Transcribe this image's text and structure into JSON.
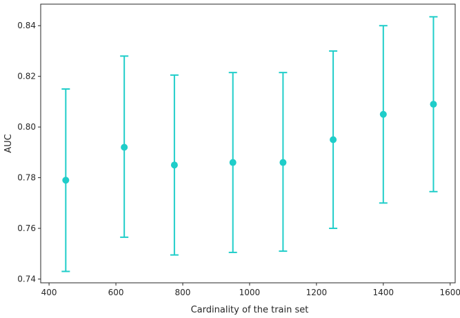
{
  "chart_data": {
    "type": "scatter",
    "title": "",
    "xlabel": "Cardinality of the train set",
    "ylabel": "AUC",
    "xlim": [
      375,
      1615
    ],
    "ylim": [
      0.7385,
      0.8485
    ],
    "x_ticks": [
      400,
      600,
      800,
      1000,
      1200,
      1400,
      1600
    ],
    "y_ticks": [
      0.74,
      0.76,
      0.78,
      0.8,
      0.82,
      0.84
    ],
    "x_tick_labels": [
      "400",
      "600",
      "800",
      "1000",
      "1200",
      "1400",
      "1600"
    ],
    "y_tick_labels": [
      "0.74",
      "0.76",
      "0.78",
      "0.80",
      "0.82",
      "0.84"
    ],
    "grid": false,
    "color": "#1fcdc9",
    "points": [
      {
        "x": 450,
        "y": 0.779,
        "err_low": 0.743,
        "err_high": 0.815
      },
      {
        "x": 625,
        "y": 0.792,
        "err_low": 0.7565,
        "err_high": 0.828
      },
      {
        "x": 775,
        "y": 0.785,
        "err_low": 0.7495,
        "err_high": 0.8205
      },
      {
        "x": 950,
        "y": 0.786,
        "err_low": 0.7505,
        "err_high": 0.8215
      },
      {
        "x": 1100,
        "y": 0.786,
        "err_low": 0.751,
        "err_high": 0.8215
      },
      {
        "x": 1250,
        "y": 0.795,
        "err_low": 0.76,
        "err_high": 0.83
      },
      {
        "x": 1400,
        "y": 0.805,
        "err_low": 0.77,
        "err_high": 0.84
      },
      {
        "x": 1550,
        "y": 0.809,
        "err_low": 0.7745,
        "err_high": 0.8435
      }
    ]
  }
}
